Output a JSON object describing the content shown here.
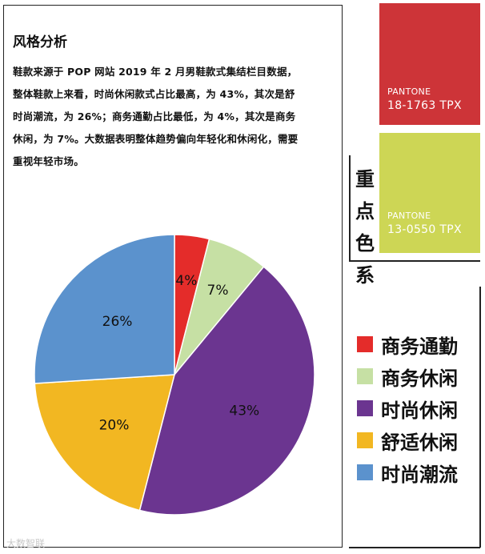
{
  "heading": "风格分析",
  "paragraph": [
    "鞋款来源于 POP 网站 2019 年 2 月男鞋款式集结栏目数据，",
    "整体鞋款上来看，时尚休闲款式占比最高，为 43%，其次是舒",
    "时尚潮流，为 26%；商务通勤占比最低，为 4%，其次是商务",
    "休闲，为 7%。大数据表明整体趋势偏向年轻化和休闲化，需要",
    "重视年轻市场。"
  ],
  "side_title": [
    "重",
    "点",
    "色",
    "系"
  ],
  "swatches": [
    {
      "name": "PANTONE",
      "code": "18-1763 TPX",
      "color": "#cd3438"
    },
    {
      "name": "PANTONE",
      "code": "13-0550 TPX",
      "color": "#cdd655"
    }
  ],
  "watermark": "大数智联",
  "chart_data": {
    "type": "pie",
    "start_angle_deg": 0,
    "direction": "clockwise",
    "slices": [
      {
        "label": "商务通勤",
        "value": 4,
        "text": "4%",
        "color": "#e42c2a"
      },
      {
        "label": "商务休闲",
        "value": 7,
        "text": "7%",
        "color": "#c6e0a4"
      },
      {
        "label": "时尚休闲",
        "value": 43,
        "text": "43%",
        "color": "#6b3590"
      },
      {
        "label": "舒适休闲",
        "value": 20,
        "text": "20%",
        "color": "#f2b722"
      },
      {
        "label": "时尚潮流",
        "value": 26,
        "text": "26%",
        "color": "#5b92cd"
      }
    ],
    "legend_position": "right"
  }
}
